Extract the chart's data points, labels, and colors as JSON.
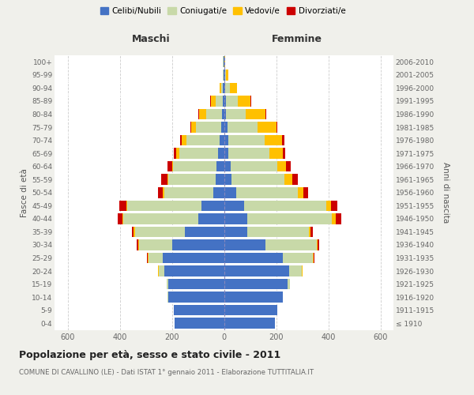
{
  "age_groups": [
    "100+",
    "95-99",
    "90-94",
    "85-89",
    "80-84",
    "75-79",
    "70-74",
    "65-69",
    "60-64",
    "55-59",
    "50-54",
    "45-49",
    "40-44",
    "35-39",
    "30-34",
    "25-29",
    "20-24",
    "15-19",
    "10-14",
    "5-9",
    "0-4"
  ],
  "birth_years": [
    "≤ 1910",
    "1911-1915",
    "1916-1920",
    "1921-1925",
    "1926-1930",
    "1931-1935",
    "1936-1940",
    "1941-1945",
    "1946-1950",
    "1951-1955",
    "1956-1960",
    "1961-1965",
    "1966-1970",
    "1971-1975",
    "1976-1980",
    "1981-1985",
    "1986-1990",
    "1991-1995",
    "1996-2000",
    "2001-2005",
    "2006-2010"
  ],
  "males_celibe": [
    2,
    2,
    4,
    5,
    8,
    12,
    18,
    22,
    28,
    32,
    42,
    85,
    100,
    150,
    200,
    235,
    228,
    215,
    215,
    192,
    190
  ],
  "males_coniugato": [
    2,
    3,
    8,
    28,
    60,
    95,
    125,
    148,
    168,
    182,
    188,
    285,
    285,
    192,
    125,
    55,
    22,
    4,
    2,
    0,
    0
  ],
  "males_vedovo": [
    0,
    1,
    6,
    18,
    28,
    18,
    18,
    13,
    4,
    4,
    4,
    4,
    4,
    4,
    3,
    2,
    2,
    0,
    0,
    0,
    0
  ],
  "males_divorziato": [
    0,
    0,
    0,
    2,
    3,
    5,
    8,
    10,
    18,
    22,
    18,
    28,
    18,
    8,
    6,
    4,
    2,
    0,
    0,
    0,
    0
  ],
  "females_nubile": [
    2,
    4,
    6,
    7,
    9,
    13,
    16,
    18,
    25,
    28,
    48,
    78,
    90,
    90,
    160,
    225,
    250,
    245,
    225,
    205,
    195
  ],
  "females_coniugata": [
    1,
    4,
    16,
    46,
    75,
    115,
    140,
    155,
    180,
    205,
    235,
    315,
    325,
    235,
    195,
    115,
    48,
    8,
    2,
    0,
    0
  ],
  "females_vedova": [
    2,
    8,
    28,
    50,
    75,
    72,
    67,
    52,
    32,
    28,
    23,
    18,
    13,
    7,
    4,
    3,
    2,
    0,
    0,
    0,
    0
  ],
  "females_divorziata": [
    0,
    0,
    0,
    2,
    3,
    5,
    8,
    10,
    18,
    22,
    18,
    23,
    23,
    10,
    7,
    4,
    2,
    0,
    0,
    0,
    0
  ],
  "colors": {
    "celibe_nubile": "#4472C4",
    "coniugato": "#c8d9a8",
    "vedovo": "#ffc000",
    "divorziato": "#cc0000"
  },
  "xlim": 650,
  "title": "Popolazione per età, sesso e stato civile - 2011",
  "subtitle": "COMUNE DI CAVALLINO (LE) - Dati ISTAT 1° gennaio 2011 - Elaborazione TUTTITALIA.IT",
  "ylabel_left": "Fasce di età",
  "ylabel_right": "Anni di nascita",
  "xlabel_maschi": "Maschi",
  "xlabel_femmine": "Femmine",
  "legend_labels": [
    "Celibi/Nubili",
    "Coniugati/e",
    "Vedovi/e",
    "Divorziati/e"
  ],
  "bg_color": "#f0f0eb",
  "plot_bg": "#ffffff",
  "xticks": [
    -600,
    -400,
    -200,
    0,
    200,
    400,
    600
  ]
}
